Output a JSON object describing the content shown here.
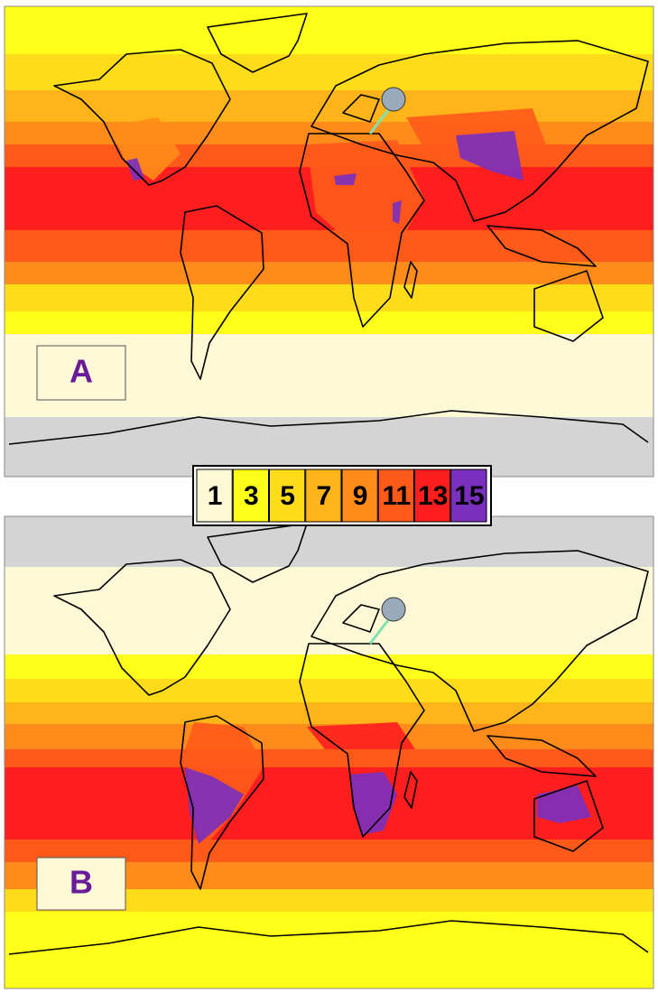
{
  "panels": [
    {
      "label": "A"
    },
    {
      "label": "B"
    }
  ],
  "legend": {
    "items": [
      {
        "label": "1",
        "color": "#fdf8d6"
      },
      {
        "label": "3",
        "color": "#ffff1a"
      },
      {
        "label": "5",
        "color": "#ffdc1a"
      },
      {
        "label": "7",
        "color": "#ffb41a"
      },
      {
        "label": "9",
        "color": "#ff8c1a"
      },
      {
        "label": "11",
        "color": "#ff5a1a"
      },
      {
        "label": "13",
        "color": "#ff1e1e"
      },
      {
        "label": "15",
        "color": "#7a2fbf"
      }
    ]
  }
}
